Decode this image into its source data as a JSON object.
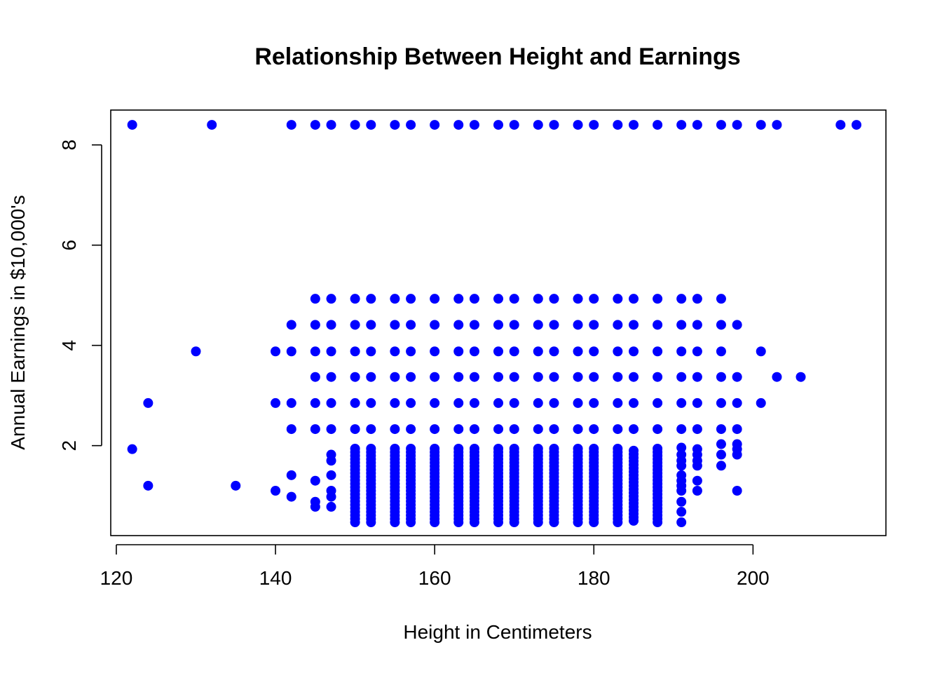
{
  "chart_data": {
    "type": "scatter",
    "title": "Relationship Between Height and Earnings",
    "xlabel": "Height in Centimeters",
    "ylabel": "Annual Earnings in $10,000's",
    "xlim": [
      119.3,
      216.7
    ],
    "ylim": [
      0.205,
      8.695
    ],
    "x_ticks": [
      120,
      140,
      160,
      180,
      200
    ],
    "y_ticks": [
      2,
      4,
      6,
      8
    ],
    "grid": false,
    "legend": "none",
    "point_color": "#0000ff",
    "series": [
      {
        "columns": [
          {
            "x": 122,
            "y": [
              8.4,
              1.93
            ]
          },
          {
            "x": 124,
            "y": [
              2.85,
              1.2
            ]
          },
          {
            "x": 130,
            "y": [
              3.88
            ]
          },
          {
            "x": 132,
            "y": [
              8.4
            ]
          },
          {
            "x": 135,
            "y": [
              1.2
            ]
          },
          {
            "x": 140,
            "y": [
              3.88,
              2.85,
              1.1
            ]
          },
          {
            "x": 142,
            "y": [
              8.4,
              4.41,
              3.88,
              2.85,
              2.33,
              1.41,
              0.98
            ]
          },
          {
            "x": 145,
            "y": [
              8.4,
              4.93,
              4.41,
              3.88,
              3.37,
              2.85,
              2.33,
              1.3,
              0.88,
              0.78
            ]
          },
          {
            "x": 147,
            "y": [
              8.4,
              4.93,
              4.41,
              3.88,
              3.37,
              2.85,
              2.33,
              1.82,
              1.7,
              1.41,
              1.1,
              0.98,
              0.78
            ]
          },
          {
            "x": 150,
            "y": [
              8.4,
              4.93,
              4.41,
              3.88,
              3.37,
              2.85,
              2.33
            ],
            "range": [
              0.47,
              1.96
            ]
          },
          {
            "x": 152,
            "y": [
              8.4,
              4.93,
              4.41,
              3.88,
              3.37,
              2.85,
              2.33
            ],
            "range": [
              0.47,
              1.96
            ]
          },
          {
            "x": 155,
            "y": [
              8.4,
              4.93,
              4.41,
              3.88,
              3.37,
              2.85,
              2.33
            ],
            "range": [
              0.47,
              1.96
            ]
          },
          {
            "x": 157,
            "y": [
              8.4,
              4.93,
              4.41,
              3.88,
              3.37,
              2.85,
              2.33
            ],
            "range": [
              0.47,
              1.96
            ]
          },
          {
            "x": 160,
            "y": [
              8.4,
              4.93,
              4.41,
              3.88,
              3.37,
              2.85,
              2.33
            ],
            "range": [
              0.47,
              1.96
            ]
          },
          {
            "x": 163,
            "y": [
              8.4,
              4.93,
              4.41,
              3.88,
              3.37,
              2.85,
              2.33
            ],
            "range": [
              0.47,
              1.96
            ]
          },
          {
            "x": 165,
            "y": [
              8.4,
              4.93,
              4.41,
              3.88,
              3.37,
              2.85,
              2.33
            ],
            "range": [
              0.47,
              1.96
            ]
          },
          {
            "x": 168,
            "y": [
              8.4,
              4.93,
              4.41,
              3.88,
              3.37,
              2.85,
              2.33
            ],
            "range": [
              0.47,
              1.96
            ]
          },
          {
            "x": 170,
            "y": [
              8.4,
              4.93,
              4.41,
              3.88,
              3.37,
              2.85,
              2.33
            ],
            "range": [
              0.47,
              1.96
            ]
          },
          {
            "x": 173,
            "y": [
              8.4,
              4.93,
              4.41,
              3.88,
              3.37,
              2.85,
              2.33
            ],
            "range": [
              0.47,
              1.96
            ]
          },
          {
            "x": 175,
            "y": [
              8.4,
              4.93,
              4.41,
              3.88,
              3.37,
              2.85,
              2.33
            ],
            "range": [
              0.47,
              1.96
            ]
          },
          {
            "x": 178,
            "y": [
              8.4,
              4.93,
              4.41,
              3.88,
              3.37,
              2.85,
              2.33
            ],
            "range": [
              0.47,
              1.96
            ]
          },
          {
            "x": 180,
            "y": [
              8.4,
              4.93,
              4.41,
              3.88,
              3.37,
              2.85,
              2.33
            ],
            "range": [
              0.47,
              1.96
            ]
          },
          {
            "x": 183,
            "y": [
              8.4,
              4.93,
              4.41,
              3.88,
              3.37,
              2.85,
              2.33
            ],
            "range": [
              0.47,
              1.96
            ]
          },
          {
            "x": 185,
            "y": [
              8.4,
              4.93,
              4.41,
              3.88,
              3.37,
              2.85,
              2.33
            ],
            "range": [
              0.5,
              1.96
            ]
          },
          {
            "x": 188,
            "y": [
              8.4,
              4.93,
              4.41,
              3.88,
              3.37,
              2.85,
              2.33
            ],
            "range": [
              0.47,
              1.96
            ]
          },
          {
            "x": 191,
            "y": [
              8.4,
              4.93,
              4.41,
              3.88,
              3.37,
              2.85,
              2.33,
              1.96,
              1.82,
              1.7,
              1.6,
              1.41,
              1.3,
              1.2,
              1.1,
              0.88,
              0.68,
              0.47
            ]
          },
          {
            "x": 193,
            "y": [
              8.4,
              4.93,
              4.41,
              3.88,
              3.37,
              2.85,
              2.33,
              1.93,
              1.82,
              1.7,
              1.6,
              1.3,
              1.1
            ]
          },
          {
            "x": 196,
            "y": [
              8.4,
              4.93,
              4.41,
              3.88,
              3.37,
              2.85,
              2.33,
              2.03,
              1.82,
              1.6
            ]
          },
          {
            "x": 198,
            "y": [
              8.4,
              4.41,
              3.37,
              2.85,
              2.33,
              2.03,
              1.93,
              1.82,
              1.1
            ]
          },
          {
            "x": 201,
            "y": [
              8.4,
              3.88,
              2.85
            ]
          },
          {
            "x": 203,
            "y": [
              8.4,
              3.37
            ]
          },
          {
            "x": 206,
            "y": [
              3.37
            ]
          },
          {
            "x": 211,
            "y": [
              8.4
            ]
          },
          {
            "x": 213,
            "y": [
              8.4
            ]
          }
        ]
      }
    ]
  }
}
